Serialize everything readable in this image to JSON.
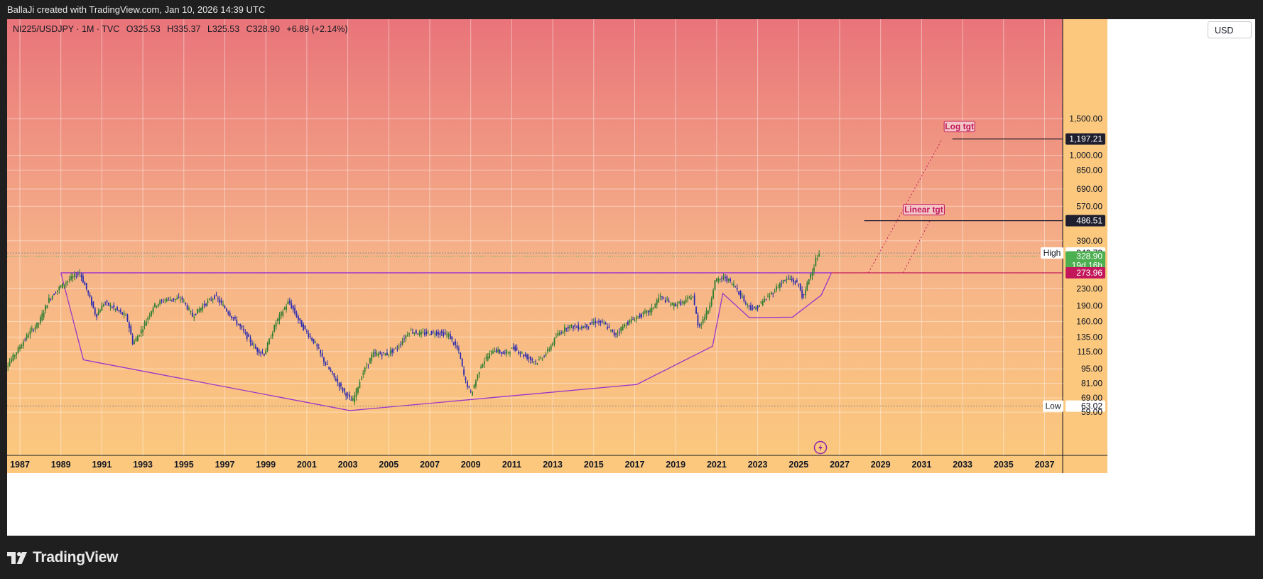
{
  "header": {
    "attribution": "BallaJi created with TradingView.com, Jan 10, 2026 14:39 UTC"
  },
  "legend": {
    "symbol": "NI225/USDJPY · 1M · TVC",
    "open": "O325.53",
    "high": "H335.37",
    "low": "L325.53",
    "close": "C328.90",
    "change": "+6.89 (+2.14%)"
  },
  "currency_button": "USD",
  "brand": "TradingView",
  "colors": {
    "bg_top": "#e9747a",
    "bg_bottom": "#fbc87e",
    "bull": "#2e7d32",
    "bear": "#2b2bb0",
    "pattern": "#9b35c9",
    "level": "#c2185b",
    "target_tag": "#c2185b",
    "last_price": "#4caf50"
  },
  "chart_data": {
    "type": "candlestick",
    "scale": "log",
    "x_axis_years": [
      "1987",
      "1989",
      "1991",
      "1993",
      "1995",
      "1997",
      "1999",
      "2001",
      "2003",
      "2005",
      "2007",
      "2009",
      "2011",
      "2013",
      "2015",
      "2017",
      "2019",
      "2021",
      "2023",
      "2025",
      "2027",
      "2029",
      "2031",
      "2033",
      "2035",
      "2037"
    ],
    "y_axis_ticks": [
      "1,500.00",
      "1,000.00",
      "850.00",
      "690.00",
      "570.00",
      "390.00",
      "230.00",
      "190.00",
      "160.00",
      "135.00",
      "115.00",
      "95.00",
      "81.00",
      "69.00",
      "59.00"
    ],
    "ohlc_legend": {
      "open": 325.53,
      "high": 335.37,
      "low": 325.53,
      "close": 328.9,
      "change": 6.89,
      "change_pct": 2.14
    },
    "anchor_series": [
      [
        1986.0,
        92
      ],
      [
        1986.5,
        100
      ],
      [
        1987.0,
        118
      ],
      [
        1987.5,
        140
      ],
      [
        1988.0,
        158
      ],
      [
        1988.5,
        205
      ],
      [
        1989.0,
        232
      ],
      [
        1989.5,
        255
      ],
      [
        1990.0,
        275
      ],
      [
        1990.4,
        220
      ],
      [
        1990.8,
        170
      ],
      [
        1991.2,
        198
      ],
      [
        1991.8,
        182
      ],
      [
        1992.3,
        168
      ],
      [
        1992.6,
        125
      ],
      [
        1993.0,
        145
      ],
      [
        1993.6,
        190
      ],
      [
        1994.2,
        205
      ],
      [
        1995.0,
        205
      ],
      [
        1995.5,
        170
      ],
      [
        1996.0,
        190
      ],
      [
        1996.6,
        212
      ],
      [
        1997.2,
        180
      ],
      [
        1997.9,
        148
      ],
      [
        1998.6,
        118
      ],
      [
        1999.0,
        112
      ],
      [
        1999.6,
        160
      ],
      [
        2000.2,
        200
      ],
      [
        2000.8,
        155
      ],
      [
        2001.5,
        125
      ],
      [
        2002.0,
        100
      ],
      [
        2002.8,
        76
      ],
      [
        2003.3,
        66
      ],
      [
        2003.8,
        90
      ],
      [
        2004.3,
        112
      ],
      [
        2005.0,
        112
      ],
      [
        2005.5,
        120
      ],
      [
        2006.1,
        145
      ],
      [
        2006.6,
        140
      ],
      [
        2007.4,
        142
      ],
      [
        2008.0,
        138
      ],
      [
        2008.5,
        115
      ],
      [
        2008.8,
        84
      ],
      [
        2009.1,
        72
      ],
      [
        2009.6,
        100
      ],
      [
        2010.2,
        118
      ],
      [
        2010.7,
        112
      ],
      [
        2011.2,
        120
      ],
      [
        2011.7,
        110
      ],
      [
        2012.3,
        102
      ],
      [
        2012.8,
        114
      ],
      [
        2013.3,
        138
      ],
      [
        2013.8,
        152
      ],
      [
        2014.5,
        150
      ],
      [
        2015.2,
        160
      ],
      [
        2015.6,
        156
      ],
      [
        2016.1,
        138
      ],
      [
        2016.6,
        155
      ],
      [
        2017.2,
        168
      ],
      [
        2017.9,
        182
      ],
      [
        2018.3,
        212
      ],
      [
        2018.9,
        192
      ],
      [
        2019.5,
        198
      ],
      [
        2019.9,
        215
      ],
      [
        2020.2,
        150
      ],
      [
        2020.7,
        185
      ],
      [
        2021.0,
        250
      ],
      [
        2021.5,
        260
      ],
      [
        2022.0,
        235
      ],
      [
        2022.5,
        196
      ],
      [
        2022.9,
        182
      ],
      [
        2023.3,
        198
      ],
      [
        2023.8,
        220
      ],
      [
        2024.2,
        245
      ],
      [
        2024.6,
        258
      ],
      [
        2025.1,
        240
      ],
      [
        2025.3,
        205
      ],
      [
        2025.6,
        262
      ],
      [
        2025.8,
        290
      ],
      [
        2025.95,
        325.53
      ],
      [
        2026.05,
        328.9
      ]
    ],
    "levels": [
      {
        "label": "High",
        "value": 340.73,
        "value_label": "340.73"
      },
      {
        "label": "",
        "value": 328.9,
        "value_label": "328.90",
        "countdown": "19d 16h"
      },
      {
        "label": "",
        "value": 273.96,
        "value_label": "273.96"
      },
      {
        "label": "Low",
        "value": 63.02,
        "value_label": "63.02"
      }
    ],
    "targets": [
      {
        "label": "Log tgt",
        "value": 1197.21,
        "value_label": "1,197.21"
      },
      {
        "label": "Linear tgt",
        "value": 486.51,
        "value_label": "486.51"
      }
    ],
    "pattern_neckline_value": 273.96,
    "pattern_outline": [
      [
        1989.0,
        273.96
      ],
      [
        1990.1,
        105
      ],
      [
        2003.1,
        60
      ],
      [
        2017.1,
        80
      ],
      [
        2020.8,
        122
      ],
      [
        2021.3,
        218
      ],
      [
        2022.6,
        167
      ],
      [
        2024.7,
        168
      ],
      [
        2026.1,
        214
      ],
      [
        2026.6,
        273.96
      ]
    ],
    "projections": [
      {
        "from": [
          2028.4,
          273.96
        ],
        "to": [
          2032.0,
          1197.21
        ],
        "style": "dotted"
      },
      {
        "from": [
          2030.1,
          273.96
        ],
        "to": [
          2031.4,
          486.51
        ],
        "style": "dotted"
      }
    ]
  }
}
